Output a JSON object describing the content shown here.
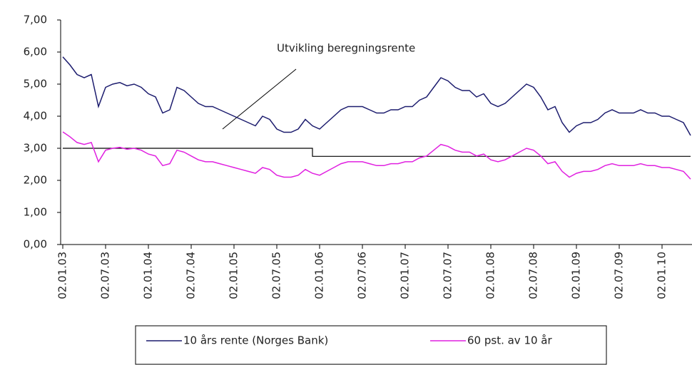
{
  "chart_data": {
    "type": "line",
    "annotation": "Utvikling beregningsrente",
    "x": [
      "02.01.03",
      "02.02.03",
      "02.03.03",
      "02.04.03",
      "02.05.03",
      "02.06.03",
      "02.07.03",
      "02.08.03",
      "02.09.03",
      "02.10.03",
      "02.11.03",
      "02.12.03",
      "02.01.04",
      "02.02.04",
      "02.03.04",
      "02.04.04",
      "02.05.04",
      "02.06.04",
      "02.07.04",
      "02.08.04",
      "02.09.04",
      "02.10.04",
      "02.11.04",
      "02.12.04",
      "02.01.05",
      "02.02.05",
      "02.03.05",
      "02.04.05",
      "02.05.05",
      "02.06.05",
      "02.07.05",
      "02.08.05",
      "02.09.05",
      "02.10.05",
      "02.11.05",
      "02.12.05",
      "02.01.06",
      "02.02.06",
      "02.03.06",
      "02.04.06",
      "02.05.06",
      "02.06.06",
      "02.07.06",
      "02.08.06",
      "02.09.06",
      "02.10.06",
      "02.11.06",
      "02.12.06",
      "02.01.07",
      "02.02.07",
      "02.03.07",
      "02.04.07",
      "02.05.07",
      "02.06.07",
      "02.07.07",
      "02.08.07",
      "02.09.07",
      "02.10.07",
      "02.11.07",
      "02.12.07",
      "02.01.08",
      "02.02.08",
      "02.03.08",
      "02.04.08",
      "02.05.08",
      "02.06.08",
      "02.07.08",
      "02.08.08",
      "02.09.08",
      "02.10.08",
      "02.11.08",
      "02.12.08",
      "02.01.09",
      "02.02.09",
      "02.03.09",
      "02.04.09",
      "02.05.09",
      "02.06.09",
      "02.07.09",
      "02.08.09",
      "02.09.09",
      "02.10.09",
      "02.11.09",
      "02.12.09",
      "02.01.10",
      "02.02.10",
      "02.03.10",
      "02.04.10",
      "02.05.10"
    ],
    "series": [
      {
        "name": "10 års rente (Norges Bank)",
        "color": "#1c1c6e",
        "values": [
          5.85,
          5.6,
          5.3,
          5.2,
          5.3,
          4.3,
          4.9,
          5.0,
          5.05,
          4.95,
          5.0,
          4.9,
          4.7,
          4.6,
          4.1,
          4.2,
          4.9,
          4.8,
          4.6,
          4.4,
          4.3,
          4.3,
          4.2,
          4.1,
          4.0,
          3.9,
          3.8,
          3.7,
          4.0,
          3.9,
          3.6,
          3.5,
          3.5,
          3.6,
          3.9,
          3.7,
          3.6,
          3.8,
          4.0,
          4.2,
          4.3,
          4.3,
          4.3,
          4.2,
          4.1,
          4.1,
          4.2,
          4.2,
          4.3,
          4.3,
          4.5,
          4.6,
          4.9,
          5.2,
          5.1,
          4.9,
          4.8,
          4.8,
          4.6,
          4.7,
          4.4,
          4.3,
          4.4,
          4.6,
          4.8,
          5.0,
          4.9,
          4.6,
          4.2,
          4.3,
          3.8,
          3.5,
          3.7,
          3.8,
          3.8,
          3.9,
          4.1,
          4.2,
          4.1,
          4.1,
          4.1,
          4.2,
          4.1,
          4.1,
          4.0,
          4.0,
          3.9,
          3.8,
          3.4
        ]
      },
      {
        "name": "60 pst. av 10 år",
        "color": "#e020e0",
        "values": [
          3.51,
          3.36,
          3.18,
          3.12,
          3.18,
          2.58,
          2.94,
          3.0,
          3.03,
          2.97,
          3.0,
          2.94,
          2.82,
          2.76,
          2.46,
          2.52,
          2.94,
          2.88,
          2.76,
          2.64,
          2.58,
          2.58,
          2.52,
          2.46,
          2.4,
          2.34,
          2.28,
          2.22,
          2.4,
          2.34,
          2.16,
          2.1,
          2.1,
          2.16,
          2.34,
          2.22,
          2.16,
          2.28,
          2.4,
          2.52,
          2.58,
          2.58,
          2.58,
          2.52,
          2.46,
          2.46,
          2.52,
          2.52,
          2.58,
          2.58,
          2.7,
          2.76,
          2.94,
          3.12,
          3.06,
          2.94,
          2.88,
          2.88,
          2.76,
          2.82,
          2.64,
          2.58,
          2.64,
          2.76,
          2.88,
          3.0,
          2.94,
          2.76,
          2.52,
          2.58,
          2.28,
          2.1,
          2.22,
          2.28,
          2.28,
          2.34,
          2.46,
          2.52,
          2.46,
          2.46,
          2.46,
          2.52,
          2.46,
          2.46,
          2.4,
          2.4,
          2.34,
          2.28,
          2.04
        ]
      }
    ],
    "step_line": {
      "color": "#000000",
      "x": [
        "02.01.03",
        "02.12.05",
        "02.12.05",
        "02.05.10"
      ],
      "values": [
        3.0,
        3.0,
        2.75,
        2.75
      ]
    },
    "xlim": [
      "02.01.03",
      "02.05.10"
    ],
    "xticks": [
      "02.01.03",
      "02.07.03",
      "02.01.04",
      "02.07.04",
      "02.01.05",
      "02.07.05",
      "02.01.06",
      "02.07.06",
      "02.01.07",
      "02.07.07",
      "02.01.08",
      "02.07.08",
      "02.01.09",
      "02.07.09",
      "02.01.10"
    ],
    "ylim": [
      0,
      7
    ],
    "yticks": [
      {
        "value": 0,
        "label": "0,00"
      },
      {
        "value": 1,
        "label": "1,00"
      },
      {
        "value": 2,
        "label": "2,00"
      },
      {
        "value": 3,
        "label": "3,00"
      },
      {
        "value": 4,
        "label": "4,00"
      },
      {
        "value": 5,
        "label": "5,00"
      },
      {
        "value": 6,
        "label": "6,00"
      },
      {
        "value": 7,
        "label": "7,00"
      }
    ],
    "grid": false
  }
}
